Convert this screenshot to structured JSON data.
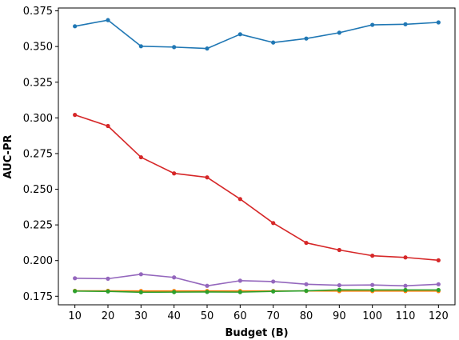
{
  "chart_data": {
    "type": "line",
    "xlabel": "Budget (B)",
    "ylabel": "AUC-PR",
    "x": [
      10,
      20,
      30,
      40,
      50,
      60,
      70,
      80,
      90,
      100,
      110,
      120
    ],
    "xlim": [
      5,
      125
    ],
    "ylim": [
      0.169,
      0.377
    ],
    "yticks": [
      0.175,
      0.2,
      0.225,
      0.25,
      0.275,
      0.3,
      0.325,
      0.35,
      0.375
    ],
    "ytick_labels": [
      "0.175",
      "0.200",
      "0.225",
      "0.250",
      "0.275",
      "0.300",
      "0.325",
      "0.350",
      "0.375"
    ],
    "grid": false,
    "series": [
      {
        "color": "#1f77b4",
        "values": [
          0.3642,
          0.3685,
          0.3502,
          0.3496,
          0.3486,
          0.3586,
          0.3528,
          0.3556,
          0.3597,
          0.3652,
          0.3656,
          0.3669
        ]
      },
      {
        "color": "#ff7f0e",
        "values": [
          0.1788,
          0.1788,
          0.1787,
          0.1787,
          0.1787,
          0.1787,
          0.1787,
          0.1787,
          0.1786,
          0.1786,
          0.1786,
          0.1786
        ]
      },
      {
        "color": "#2ca02c",
        "values": [
          0.1786,
          0.1784,
          0.1778,
          0.1779,
          0.178,
          0.1779,
          0.1784,
          0.1788,
          0.1795,
          0.1794,
          0.1794,
          0.1794
        ]
      },
      {
        "color": "#d62728",
        "values": [
          0.3021,
          0.2943,
          0.2724,
          0.2611,
          0.2583,
          0.2431,
          0.2263,
          0.2124,
          0.2074,
          0.2034,
          0.2022,
          0.2002
        ]
      },
      {
        "color": "#9467bd",
        "values": [
          0.1876,
          0.1873,
          0.1904,
          0.1882,
          0.1823,
          0.1859,
          0.1853,
          0.1834,
          0.1827,
          0.1829,
          0.1823,
          0.1834
        ]
      }
    ]
  }
}
